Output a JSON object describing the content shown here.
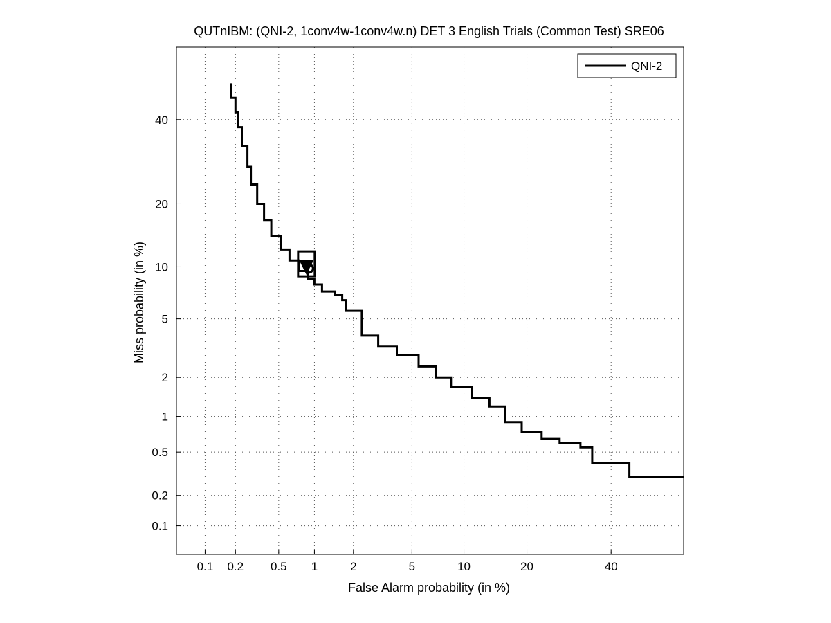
{
  "chart_data": {
    "type": "line",
    "title": "QUTnIBM: (QNI-2, 1conv4w-1conv4w.n) DET 3 English Trials (Common Test) SRE06",
    "xlabel": "False Alarm probability (in %)",
    "ylabel": "Miss probability (in %)",
    "axis_scale": "normal-deviate (probit)",
    "xlim": [
      0.05,
      60
    ],
    "ylim": [
      0.05,
      60
    ],
    "x_ticks": [
      0.1,
      0.2,
      0.5,
      1,
      2,
      5,
      10,
      20,
      40
    ],
    "x_tick_labels": [
      "0.1",
      "0.2",
      "0.5",
      "1",
      "2",
      "5",
      "10",
      "20",
      "40"
    ],
    "y_ticks": [
      0.1,
      0.2,
      0.5,
      1,
      2,
      5,
      10,
      20,
      40
    ],
    "y_tick_labels": [
      "0.1",
      "0.2",
      "0.5",
      "1",
      "2",
      "5",
      "10",
      "20",
      "40"
    ],
    "grid": true,
    "legend_position": "top-right",
    "series": [
      {
        "name": "QNI-2",
        "color": "#000000",
        "x": [
          0.18,
          0.2,
          0.21,
          0.23,
          0.26,
          0.28,
          0.32,
          0.37,
          0.43,
          0.52,
          0.62,
          0.75,
          0.88,
          1.0,
          1.15,
          1.45,
          1.65,
          1.75,
          2.3,
          3.0,
          4.0,
          5.5,
          7.0,
          8.5,
          11.0,
          13.5,
          16.0,
          19.0,
          23.0,
          27.0,
          32.0,
          35.0,
          45.0,
          55.0,
          60.0
        ],
        "y": [
          50,
          46,
          42,
          38,
          33,
          28,
          24,
          20,
          17,
          14.3,
          12.3,
          10.8,
          9.5,
          8.6,
          8.0,
          7.3,
          7.0,
          6.5,
          5.6,
          3.9,
          3.3,
          2.9,
          2.4,
          2.0,
          1.7,
          1.4,
          1.2,
          0.9,
          0.75,
          0.65,
          0.6,
          0.55,
          0.4,
          0.3,
          0.3
        ]
      }
    ],
    "markers": [
      {
        "type": "triangle-down",
        "x": 0.86,
        "y": 10.0
      },
      {
        "type": "circle",
        "x": 0.9,
        "y": 9.8
      },
      {
        "type": "square",
        "x": 0.86,
        "y": 10.2
      }
    ]
  }
}
